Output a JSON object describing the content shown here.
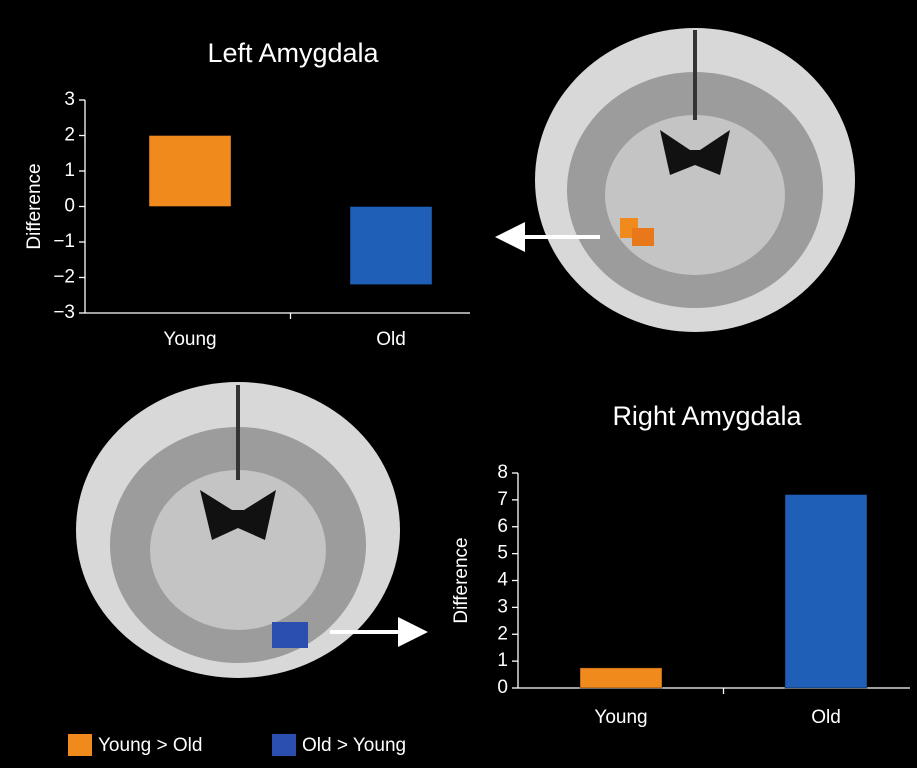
{
  "charts": [
    {
      "type": "bar",
      "title": "Left Amygdala",
      "y_label": "Difference",
      "categories": [
        "Young",
        "Old"
      ],
      "values": [
        2.0,
        -2.2
      ],
      "colors": [
        "#f08a1c",
        "#1f5fb8"
      ],
      "ylim": [
        -3,
        3
      ],
      "yticks": [
        {
          "value": -3,
          "label": "−3"
        },
        {
          "value": -2,
          "label": "−2"
        },
        {
          "value": -1,
          "label": "−1"
        },
        0,
        1,
        2,
        3
      ]
    },
    {
      "type": "bar",
      "title": "Right Amygdala",
      "y_label": "Difference",
      "categories": [
        "Young",
        "Old"
      ],
      "values": [
        0.75,
        7.2
      ],
      "colors": [
        "#f08a1c",
        "#1f5fb8"
      ],
      "ylim": [
        0,
        8
      ],
      "yticks": [
        0,
        1,
        2,
        3,
        4,
        5,
        6,
        7,
        8
      ]
    }
  ],
  "legend": [
    {
      "label": "Young > Old",
      "color": "#f08a1c"
    },
    {
      "label": "Old > Young",
      "color": "#2a4fb0"
    }
  ]
}
